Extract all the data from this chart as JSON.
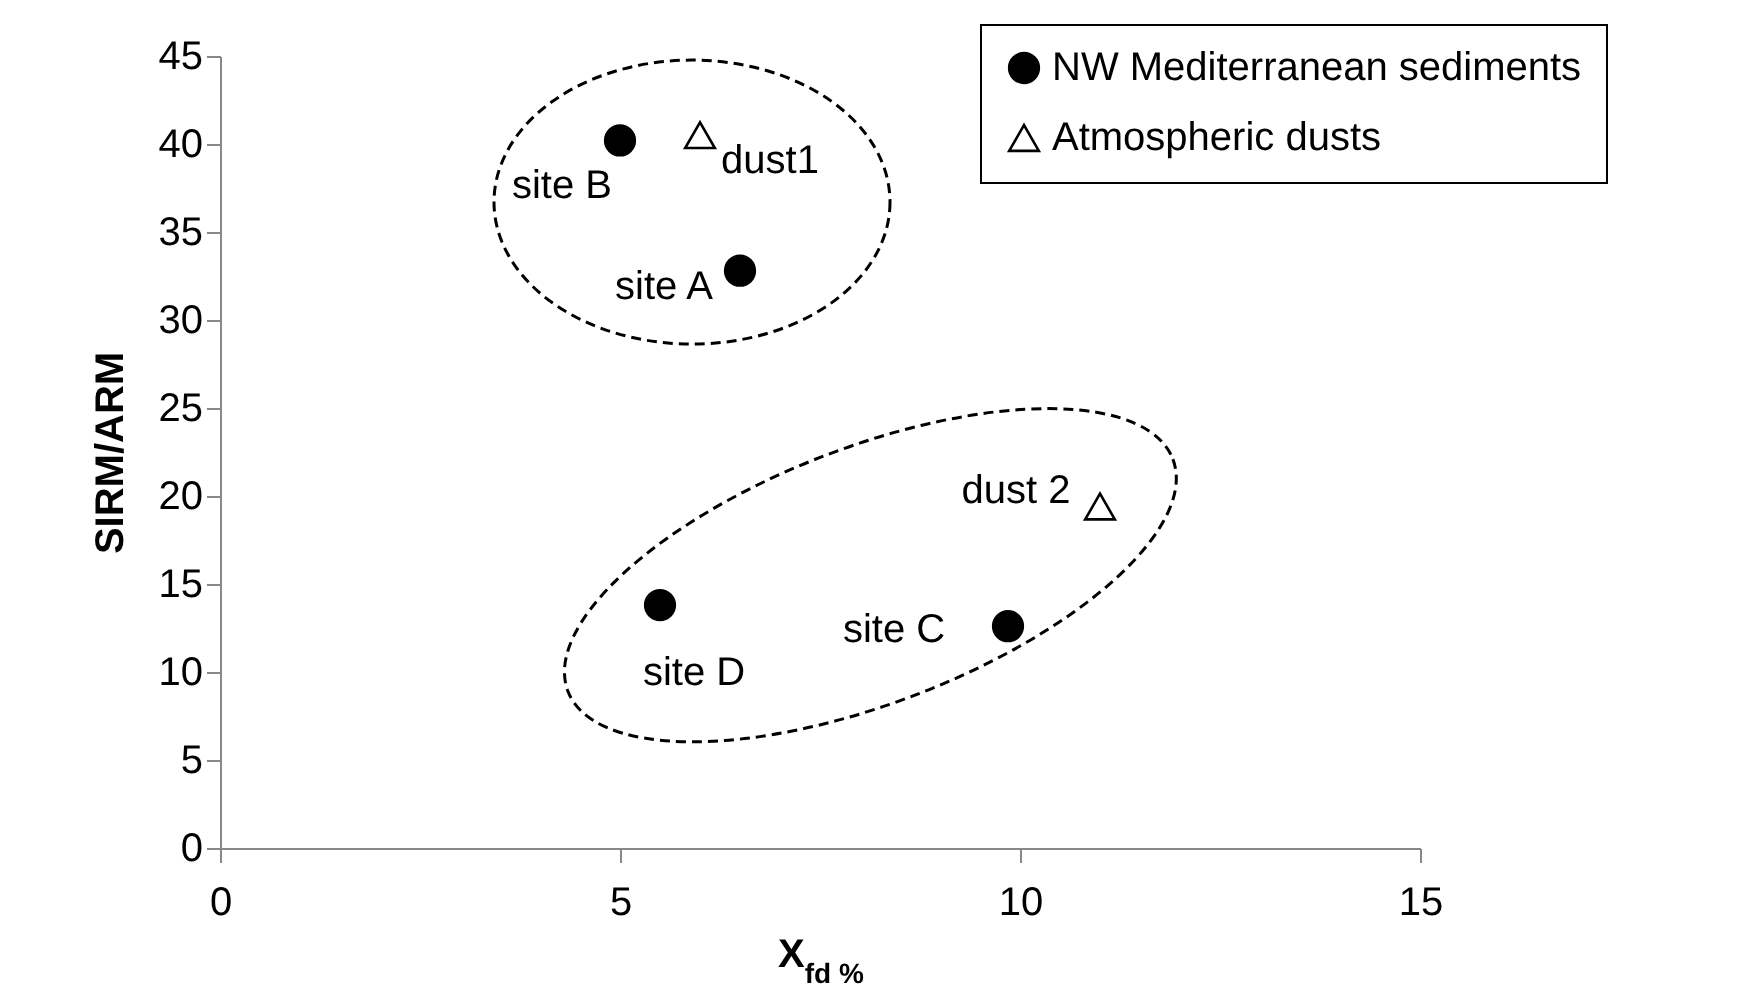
{
  "chart_data": {
    "type": "scatter",
    "xlabel": "X$_{fd %}$",
    "ylabel": "SIRM/ARM",
    "series": [
      {
        "name": "NW Mediterranean sediments",
        "color": "#000000",
        "marker": "circle",
        "x": [
          5.0,
          6.5,
          5.5,
          9.85
        ],
        "values": [
          40.2,
          32.8,
          13.8,
          12.6
        ]
      },
      {
        "name": "Atmospheric dusts",
        "color": "#000000",
        "marker": "triangle",
        "x": [
          6.0,
          11.0
        ],
        "values": [
          40.5,
          19.4
        ]
      }
    ],
    "annotations": [
      {
        "text": "site B",
        "x": 5.0,
        "y": 40.2
      },
      {
        "text": "dust1",
        "x": 6.0,
        "y": 40.5
      },
      {
        "text": "site A",
        "x": 6.5,
        "y": 32.8
      },
      {
        "text": "dust 2",
        "x": 11.0,
        "y": 19.4
      },
      {
        "text": "site D",
        "x": 5.5,
        "y": 13.8
      },
      {
        "text": "site C",
        "x": 9.85,
        "y": 12.6
      }
    ],
    "xlim": [
      0,
      15
    ],
    "xticks": [
      0,
      5,
      10,
      15
    ],
    "ylim": [
      0,
      45
    ],
    "yticks": [
      0,
      5,
      10,
      15,
      20,
      25,
      30,
      35,
      40,
      45
    ],
    "grid": false,
    "legend": "top right"
  }
}
